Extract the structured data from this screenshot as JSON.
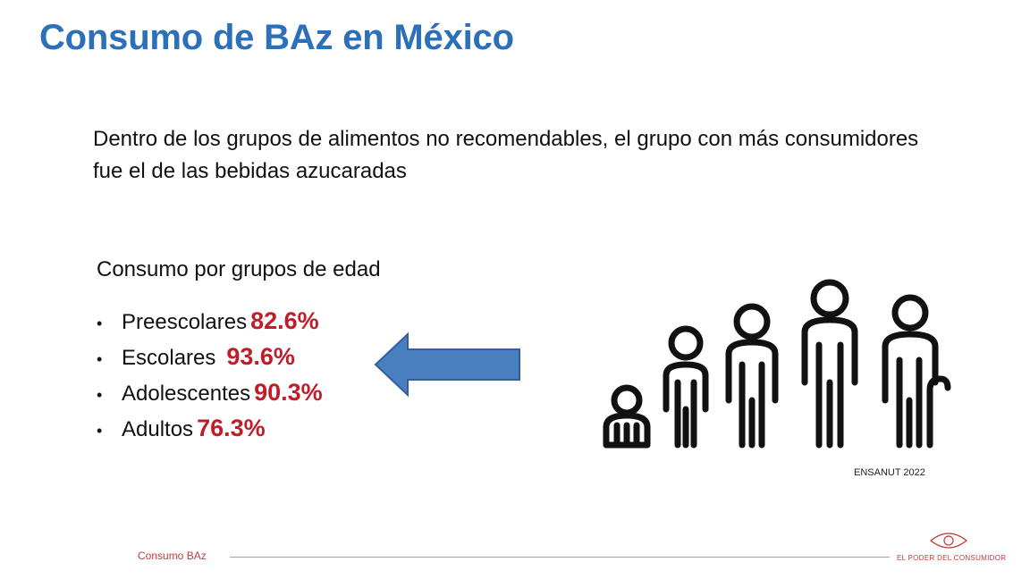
{
  "slide": {
    "title": "Consumo de BAz en México",
    "lead": "Dentro de los grupos de alimentos no recomendables, el grupo con más consumidores fue el de las bebidas azucaradas",
    "subhead": "Consumo por grupos de edad",
    "groups": [
      {
        "label": "Preescolares",
        "value": "82.6%"
      },
      {
        "label": "Escolares",
        "value": "93.6%"
      },
      {
        "label": "Adolescentes",
        "value": "90.3%"
      },
      {
        "label": "Adultos",
        "value": "76.3%"
      }
    ],
    "bullet": "•",
    "source": "ENSANUT 2022"
  },
  "footer": {
    "label": "Consumo BAz",
    "brand": "EL PODER DEL CONSUMIDOR"
  },
  "colors": {
    "title": "#2b70b8",
    "value": "#c01d28",
    "arrow_fill": "#4a7fc0",
    "arrow_stroke": "#2f5f9c",
    "footer": "#c23a3a"
  },
  "icons": [
    "left-arrow-icon",
    "age-groups-people-icon",
    "eye-logo-icon"
  ]
}
